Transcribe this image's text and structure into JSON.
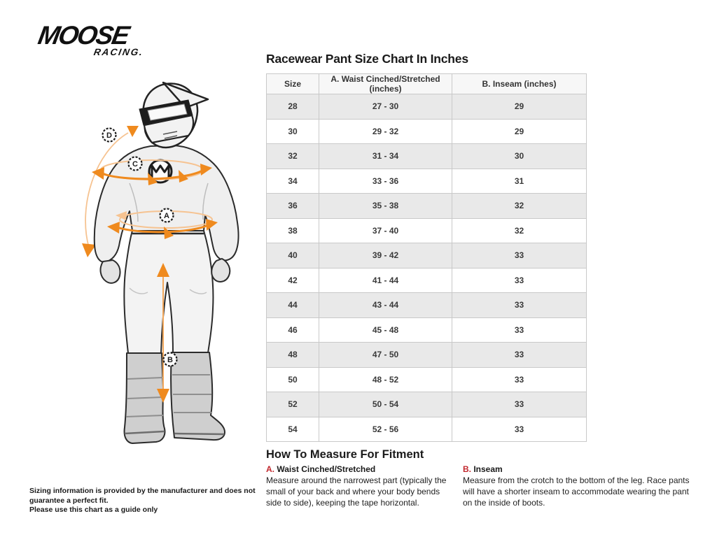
{
  "logo": {
    "brand_top": "MOOSE",
    "brand_bottom": "RACING."
  },
  "table": {
    "title": "Racewear Pant Size Chart In Inches",
    "columns": [
      "Size",
      "A. Waist Cinched/Stretched (inches)",
      "B. Inseam (inches)"
    ],
    "rows": [
      [
        "28",
        "27 - 30",
        "29"
      ],
      [
        "30",
        "29 - 32",
        "29"
      ],
      [
        "32",
        "31 - 34",
        "30"
      ],
      [
        "34",
        "33 - 36",
        "31"
      ],
      [
        "36",
        "35 - 38",
        "32"
      ],
      [
        "38",
        "37 - 40",
        "32"
      ],
      [
        "40",
        "39 - 42",
        "33"
      ],
      [
        "42",
        "41 - 44",
        "33"
      ],
      [
        "44",
        "43 - 44",
        "33"
      ],
      [
        "46",
        "45 - 48",
        "33"
      ],
      [
        "48",
        "47 - 50",
        "33"
      ],
      [
        "50",
        "48 - 52",
        "33"
      ],
      [
        "52",
        "50 - 54",
        "33"
      ],
      [
        "54",
        "52 - 56",
        "33"
      ]
    ]
  },
  "measure": {
    "heading": "How To Measure For Fitment",
    "items": [
      {
        "letter": "A.",
        "title": " Waist Cinched/Stretched",
        "body": "Measure around the narrowest part (typically the small of your back and where your body bends side to side), keeping the tape horizontal."
      },
      {
        "letter": "B.",
        "title": " Inseam",
        "body": "Measure from the crotch to the bottom of the leg. Race pants will have a shorter inseam to accommodate wearing the pant on the inside of boots."
      }
    ]
  },
  "figure": {
    "markers": {
      "a": "A",
      "b": "B",
      "c": "C",
      "d": "D"
    }
  },
  "disclaimer": {
    "line1": "Sizing information is provided by the manufacturer and does not guarantee a perfect fit.",
    "line2": "Please use this chart as a guide only"
  },
  "colors": {
    "accent_orange": "#ef8a1e",
    "accent_orange_pale": "#f6c391",
    "accent_red": "#c1272d",
    "row_gray": "#e9e9e9",
    "table_border": "#c9c9c9",
    "ink": "#1a1a1a"
  }
}
